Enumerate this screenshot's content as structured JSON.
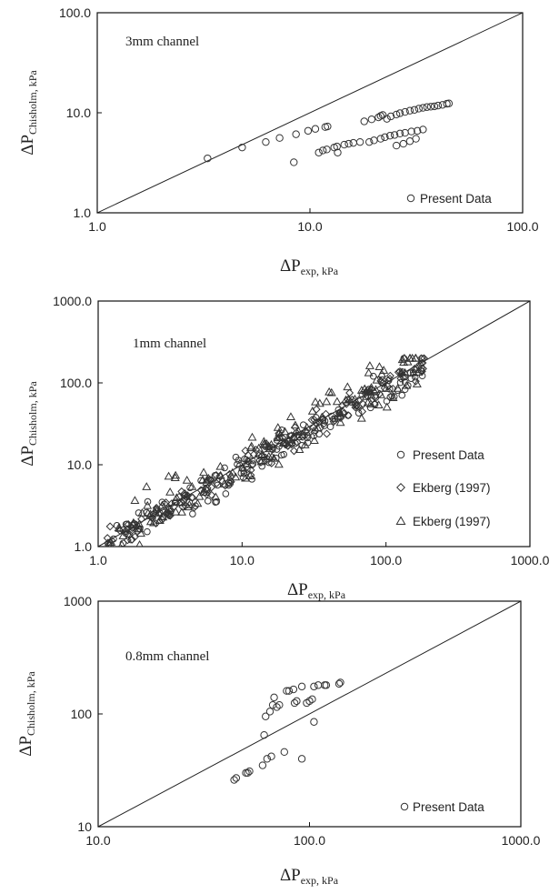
{
  "chart_data": [
    {
      "type": "scatter",
      "xscale": "log",
      "yscale": "log",
      "xlim": [
        1,
        100
      ],
      "ylim": [
        1,
        100
      ],
      "xticks": [
        "1.0",
        "10.0",
        "100.0"
      ],
      "yticks": [
        "1.0",
        "10.0",
        "100.0"
      ],
      "xlabel": "ΔP",
      "xlabel_sub": "exp, kPa",
      "ylabel": "ΔP",
      "ylabel_sub": "Chisholm, kPa",
      "annotation": "3mm channel",
      "reference_line": "y = x",
      "legend_position": "bottom-right",
      "series": [
        {
          "name": "Present Data",
          "marker": "circle",
          "points": [
            [
              3.3,
              3.5
            ],
            [
              4.8,
              4.5
            ],
            [
              6.2,
              5.1
            ],
            [
              7.2,
              5.6
            ],
            [
              8.6,
              6.1
            ],
            [
              9.8,
              6.6
            ],
            [
              10.6,
              6.9
            ],
            [
              11.8,
              7.2
            ],
            [
              12.1,
              7.3
            ],
            [
              8.4,
              3.2
            ],
            [
              11.0,
              4.0
            ],
            [
              11.5,
              4.2
            ],
            [
              12.0,
              4.3
            ],
            [
              13.0,
              4.5
            ],
            [
              13.4,
              4.6
            ],
            [
              14.5,
              4.8
            ],
            [
              15.2,
              4.9
            ],
            [
              16.0,
              5.0
            ],
            [
              17.2,
              5.1
            ],
            [
              19.0,
              5.1
            ],
            [
              20.0,
              5.3
            ],
            [
              21.5,
              5.5
            ],
            [
              22.5,
              5.7
            ],
            [
              23.8,
              5.9
            ],
            [
              25.0,
              6.0
            ],
            [
              26.5,
              6.2
            ],
            [
              28.0,
              6.3
            ],
            [
              30.0,
              6.5
            ],
            [
              32.0,
              6.6
            ],
            [
              34.0,
              6.8
            ],
            [
              25.5,
              4.7
            ],
            [
              27.5,
              4.9
            ],
            [
              29.5,
              5.2
            ],
            [
              31.5,
              5.5
            ],
            [
              18.0,
              8.2
            ],
            [
              19.5,
              8.6
            ],
            [
              21.0,
              9.0
            ],
            [
              21.5,
              9.3
            ],
            [
              22.0,
              9.5
            ],
            [
              23.0,
              8.7
            ],
            [
              24.0,
              9.2
            ],
            [
              25.5,
              9.6
            ],
            [
              26.5,
              9.9
            ],
            [
              28.0,
              10.2
            ],
            [
              29.5,
              10.5
            ],
            [
              31.0,
              10.7
            ],
            [
              32.5,
              11.0
            ],
            [
              34.0,
              11.2
            ],
            [
              35.5,
              11.4
            ],
            [
              37.0,
              11.5
            ],
            [
              38.5,
              11.6
            ],
            [
              40.0,
              11.8
            ],
            [
              42.0,
              12.0
            ],
            [
              44.0,
              12.3
            ],
            [
              45.0,
              12.4
            ],
            [
              13.5,
              4.0
            ]
          ]
        }
      ]
    },
    {
      "type": "scatter",
      "xscale": "log",
      "yscale": "log",
      "xlim": [
        1,
        1000
      ],
      "ylim": [
        1,
        1000
      ],
      "xticks": [
        "1.0",
        "10.0",
        "100.0",
        "1000.0"
      ],
      "yticks": [
        "1.0",
        "10.0",
        "100.0",
        "1000.0"
      ],
      "xlabel": "ΔP",
      "xlabel_sub": "exp, kPa",
      "ylabel": "ΔP",
      "ylabel_sub": "Chisholm, kPa",
      "annotation": "1mm channel",
      "reference_line": "y = x",
      "legend_position": "right",
      "series": [
        {
          "name": "Present Data",
          "marker": "circle",
          "generated": "dense band along y = x, x ≈ 1.2 to 180 kPa"
        },
        {
          "name": "Ekberg (1997)",
          "marker": "diamond",
          "generated": "dense band along y = x, x ≈ 1.1 to 190 kPa"
        },
        {
          "name": "Ekberg (1997)",
          "marker": "triangle",
          "generated": "dense band along y = x, x ≈ 1.2 to 170 kPa"
        }
      ]
    },
    {
      "type": "scatter",
      "xscale": "log",
      "yscale": "log",
      "xlim": [
        10,
        1000
      ],
      "ylim": [
        10,
        1000
      ],
      "xticks": [
        "10.0",
        "100.0",
        "1000.0"
      ],
      "yticks": [
        "10",
        "100",
        "1000"
      ],
      "xlabel": "ΔP",
      "xlabel_sub": "exp, kPa",
      "ylabel": "ΔP",
      "ylabel_sub": "Chisholm, kPa",
      "annotation": "0.8mm channel",
      "reference_line": "y = x",
      "legend_position": "bottom-right",
      "series": [
        {
          "name": "Present Data",
          "marker": "circle",
          "points": [
            [
              44,
              26
            ],
            [
              45,
              27
            ],
            [
              50,
              30
            ],
            [
              51,
              30
            ],
            [
              52,
              31
            ],
            [
              60,
              35
            ],
            [
              63,
              40
            ],
            [
              66,
              42
            ],
            [
              76,
              46
            ],
            [
              92,
              40
            ],
            [
              61,
              65
            ],
            [
              62,
              95
            ],
            [
              65,
              105
            ],
            [
              67,
              120
            ],
            [
              68,
              140
            ],
            [
              70,
              115
            ],
            [
              72,
              120
            ],
            [
              78,
              160
            ],
            [
              80,
              160
            ],
            [
              84,
              165
            ],
            [
              85,
              125
            ],
            [
              87,
              130
            ],
            [
              92,
              175
            ],
            [
              97,
              125
            ],
            [
              100,
              130
            ],
            [
              103,
              135
            ],
            [
              105,
              175
            ],
            [
              110,
              180
            ],
            [
              118,
              180
            ],
            [
              120,
              180
            ],
            [
              105,
              85
            ],
            [
              138,
              185
            ],
            [
              140,
              190
            ]
          ]
        }
      ]
    }
  ]
}
